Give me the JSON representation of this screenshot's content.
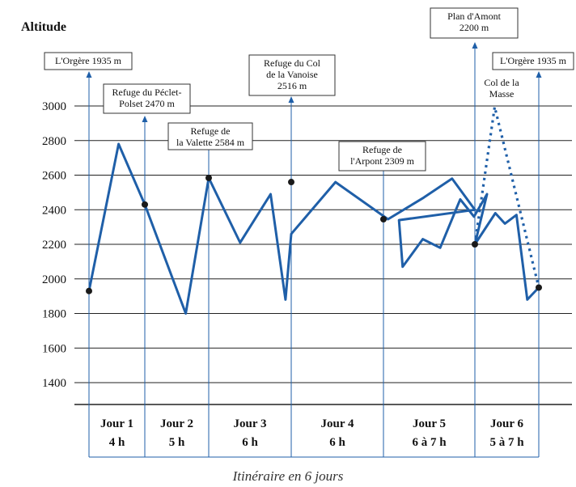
{
  "chart_data": {
    "type": "line",
    "title": "",
    "ylabel": "Altitude",
    "caption": "Itinéraire en 6 jours",
    "ylim": [
      1250,
      3000
    ],
    "yticks": [
      1400,
      1600,
      1800,
      2000,
      2200,
      2400,
      2600,
      2800,
      3000
    ],
    "days": [
      {
        "label": "Jour 1",
        "duration": "4 h"
      },
      {
        "label": "Jour 2",
        "duration": "5 h"
      },
      {
        "label": "Jour 3",
        "duration": "6 h"
      },
      {
        "label": "Jour 4",
        "duration": "6 h"
      },
      {
        "label": "Jour 5",
        "duration": "6 à 7 h"
      },
      {
        "label": "Jour 6",
        "duration": "5 à 7 h"
      }
    ],
    "day_boundaries": [
      0,
      1,
      2,
      3,
      4,
      5,
      6
    ],
    "series": [
      {
        "style": "solid",
        "points": [
          [
            0.0,
            1930
          ],
          [
            0.53,
            2780
          ],
          [
            1.0,
            2430
          ],
          [
            1.64,
            1800
          ],
          [
            2.0,
            2584
          ],
          [
            2.38,
            2210
          ],
          [
            2.75,
            2490
          ],
          [
            2.93,
            1880
          ],
          [
            3.0,
            2260
          ],
          [
            3.48,
            2560
          ],
          [
            4.05,
            2345
          ],
          [
            4.44,
            2470
          ],
          [
            4.75,
            2580
          ],
          [
            5.0,
            2400
          ],
          [
            5.17,
            2340
          ],
          [
            5.21,
            2070
          ],
          [
            5.43,
            2230
          ],
          [
            5.62,
            2180
          ],
          [
            5.84,
            2460
          ],
          [
            5.99,
            2360
          ],
          [
            6.19,
            2490
          ],
          [
            6.0,
            2200
          ],
          [
            6.32,
            2380
          ],
          [
            6.47,
            2320
          ],
          [
            6.65,
            2370
          ],
          [
            6.82,
            1880
          ],
          [
            7.0,
            1950
          ]
        ]
      },
      {
        "style": "dotted",
        "points": [
          [
            6.0,
            2200
          ],
          [
            6.31,
            2995
          ],
          [
            7.0,
            1950
          ]
        ]
      }
    ],
    "stops": [
      {
        "label": "L'Orgère 1935 m",
        "x": 0,
        "y": 1930
      },
      {
        "label": "Refuge du Péclet-Polset 2470 m",
        "x": 1,
        "y": 2430
      },
      {
        "label": "Refuge de la Valette 2584 m",
        "x": 2,
        "y": 2584
      },
      {
        "label": "Refuge du Col de la Vanoise 2516 m",
        "x": 3,
        "y": 2560
      },
      {
        "label": "Refuge de l'Arpont 2309 m",
        "x": 4,
        "y": 2345
      },
      {
        "label": "Plan d'Amont 2200 m",
        "x": 5,
        "y": 2200
      },
      {
        "label": "L'Orgère 1935 m",
        "x": 6,
        "y": 1950
      }
    ],
    "annotations": [
      {
        "label": "Col de la Masse"
      }
    ],
    "colors": {
      "line": "#1f5fa8",
      "marker": "#1a1a1a",
      "grid": "#222222"
    }
  }
}
